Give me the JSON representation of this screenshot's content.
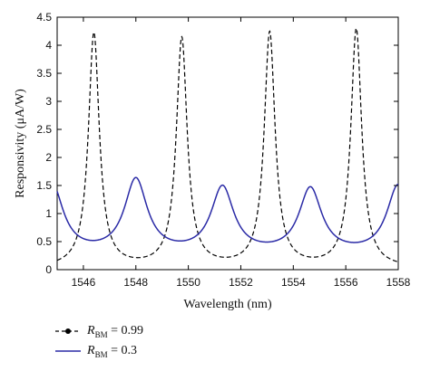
{
  "chart_data": {
    "type": "line",
    "xlabel": "Wavelength (nm)",
    "ylabel": "Responsivity (μA/W)",
    "xlim": [
      1545,
      1558
    ],
    "ylim": [
      0,
      4.5
    ],
    "x_ticks": [
      1546,
      1548,
      1550,
      1552,
      1554,
      1556,
      1558
    ],
    "y_ticks": [
      0,
      0.5,
      1,
      1.5,
      2,
      2.5,
      3,
      3.5,
      4,
      4.5
    ],
    "grid": false,
    "legend_position": "below",
    "series": [
      {
        "name": "R_BM = 0.99",
        "legend_label": "= 0.99",
        "color": "#000000",
        "style": "dashed",
        "peaks": [
          {
            "x": 1546.4,
            "y": 4.2
          },
          {
            "x": 1549.75,
            "y": 4.1
          },
          {
            "x": 1553.1,
            "y": 4.2
          },
          {
            "x": 1556.4,
            "y": 4.27
          }
        ],
        "baseline": 0.02,
        "fwhm": 0.5
      },
      {
        "name": "R_BM = 0.3",
        "legend_label": "= 0.3",
        "color": "#2a2aa6",
        "style": "solid",
        "peaks": [
          {
            "x": 1544.8,
            "y": 1.5
          },
          {
            "x": 1548.0,
            "y": 1.57
          },
          {
            "x": 1551.3,
            "y": 1.43
          },
          {
            "x": 1554.65,
            "y": 1.41
          },
          {
            "x": 1558.0,
            "y": 1.48
          }
        ],
        "baseline": 0.25,
        "fwhm": 1.05
      }
    ]
  }
}
